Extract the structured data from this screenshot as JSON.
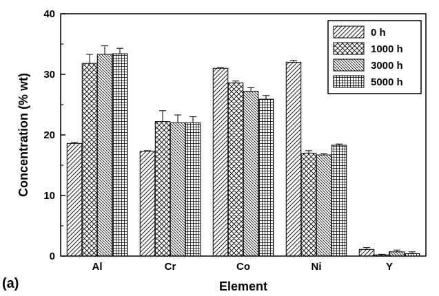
{
  "panel_label": "(a)",
  "chart_data": {
    "type": "bar",
    "title": "",
    "xlabel": "Element",
    "ylabel": "Concentration (% wt)",
    "categories": [
      "Al",
      "Cr",
      "Co",
      "Ni",
      "Y"
    ],
    "ylim": [
      0,
      40
    ],
    "yticks": [
      0,
      10,
      20,
      30,
      40
    ],
    "grid": false,
    "legend_position": "top-right",
    "error_bars": true,
    "series": [
      {
        "name": "0 h",
        "pattern": "diagonal-hatch",
        "values": [
          18.6,
          17.3,
          31.0,
          32.0,
          1.1
        ],
        "errors": [
          0.2,
          0.1,
          0.1,
          0.3,
          0.3
        ]
      },
      {
        "name": "1000 h",
        "pattern": "cross-hatch",
        "values": [
          31.8,
          22.2,
          28.6,
          17.0,
          0.2
        ],
        "errors": [
          1.5,
          1.8,
          0.3,
          0.4,
          0.1
        ]
      },
      {
        "name": "3000 h",
        "pattern": "dense-diagonal-hatch",
        "values": [
          33.3,
          22.0,
          27.2,
          16.7,
          0.7
        ],
        "errors": [
          1.4,
          1.3,
          0.6,
          0.2,
          0.3
        ]
      },
      {
        "name": "5000 h",
        "pattern": "grid-hatch",
        "values": [
          33.4,
          22.0,
          25.9,
          18.3,
          0.4
        ],
        "errors": [
          0.9,
          1.0,
          0.6,
          0.2,
          0.3
        ]
      }
    ]
  }
}
